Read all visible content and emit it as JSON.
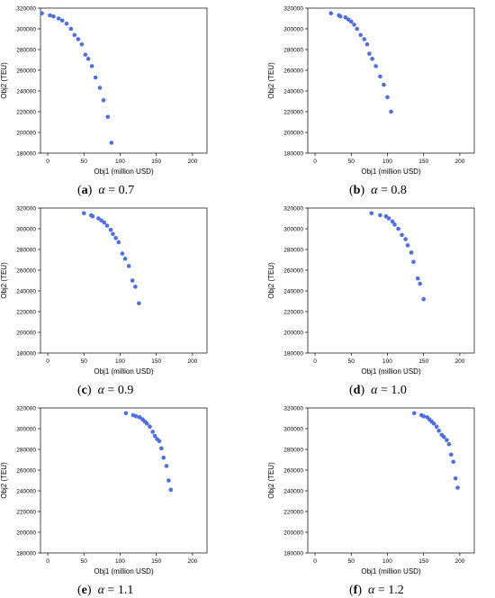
{
  "colors": {
    "marker": "#4f6ee6",
    "axis": "#000000"
  },
  "chart_data": [
    {
      "type": "scatter",
      "caption": {
        "letter": "a",
        "text": "α = 0.7"
      },
      "xlabel": "Obj1 (million USD)",
      "ylabel": "Obj2 (TEU)",
      "xlim": [
        -10,
        220
      ],
      "ylim": [
        180000,
        320000
      ],
      "xticks": [
        0,
        50,
        100,
        150,
        200
      ],
      "yticks": [
        180000,
        200000,
        220000,
        240000,
        260000,
        280000,
        300000,
        320000
      ],
      "points": [
        [
          -8,
          315000
        ],
        [
          3,
          313000
        ],
        [
          8,
          312000
        ],
        [
          15,
          310000
        ],
        [
          20,
          308000
        ],
        [
          26,
          305000
        ],
        [
          32,
          300000
        ],
        [
          37,
          294000
        ],
        [
          42,
          290000
        ],
        [
          47,
          285000
        ],
        [
          52,
          275000
        ],
        [
          56,
          271000
        ],
        [
          61,
          264000
        ],
        [
          66,
          253000
        ],
        [
          72,
          243000
        ],
        [
          77,
          231000
        ],
        [
          83,
          215000
        ],
        [
          88,
          190000
        ]
      ]
    },
    {
      "type": "scatter",
      "caption": {
        "letter": "b",
        "text": "α = 0.8"
      },
      "xlabel": "Obj1 (million USD)",
      "ylabel": "Obj2 (TEU)",
      "xlim": [
        -10,
        220
      ],
      "ylim": [
        180000,
        320000
      ],
      "xticks": [
        0,
        50,
        100,
        150,
        200
      ],
      "yticks": [
        180000,
        200000,
        220000,
        240000,
        260000,
        280000,
        300000,
        320000
      ],
      "points": [
        [
          22,
          315000
        ],
        [
          33,
          313000
        ],
        [
          35,
          312000
        ],
        [
          42,
          311000
        ],
        [
          46,
          309000
        ],
        [
          50,
          307000
        ],
        [
          54,
          304000
        ],
        [
          58,
          300000
        ],
        [
          63,
          294000
        ],
        [
          68,
          290000
        ],
        [
          72,
          285000
        ],
        [
          75,
          276000
        ],
        [
          79,
          271000
        ],
        [
          84,
          264000
        ],
        [
          90,
          254000
        ],
        [
          95,
          246000
        ],
        [
          100,
          234000
        ],
        [
          105,
          220000
        ]
      ]
    },
    {
      "type": "scatter",
      "caption": {
        "letter": "c",
        "text": "α = 0.9"
      },
      "xlabel": "Obj1 (million USD)",
      "ylabel": "Obj2 (TEU)",
      "xlim": [
        -10,
        220
      ],
      "ylim": [
        180000,
        320000
      ],
      "xticks": [
        0,
        50,
        100,
        150,
        200
      ],
      "yticks": [
        180000,
        200000,
        220000,
        240000,
        260000,
        280000,
        300000,
        320000
      ],
      "points": [
        [
          50,
          315000
        ],
        [
          60,
          313000
        ],
        [
          62,
          312000
        ],
        [
          70,
          310000
        ],
        [
          74,
          308000
        ],
        [
          78,
          306000
        ],
        [
          82,
          303000
        ],
        [
          87,
          299000
        ],
        [
          90,
          295000
        ],
        [
          94,
          291000
        ],
        [
          98,
          287000
        ],
        [
          103,
          276000
        ],
        [
          107,
          271000
        ],
        [
          112,
          264000
        ],
        [
          117,
          250000
        ],
        [
          121,
          244000
        ],
        [
          126,
          228000
        ]
      ]
    },
    {
      "type": "scatter",
      "caption": {
        "letter": "d",
        "text": "α = 1.0"
      },
      "xlabel": "Obj1 (million USD)",
      "ylabel": "Obj2 (TEU)",
      "xlim": [
        -10,
        220
      ],
      "ylim": [
        180000,
        320000
      ],
      "xticks": [
        0,
        50,
        100,
        150,
        200
      ],
      "yticks": [
        180000,
        200000,
        220000,
        240000,
        260000,
        280000,
        300000,
        320000
      ],
      "points": [
        [
          78,
          315000
        ],
        [
          90,
          313000
        ],
        [
          98,
          312000
        ],
        [
          102,
          310000
        ],
        [
          107,
          307000
        ],
        [
          110,
          304000
        ],
        [
          115,
          300000
        ],
        [
          120,
          294000
        ],
        [
          125,
          290000
        ],
        [
          128,
          284000
        ],
        [
          133,
          277000
        ],
        [
          136,
          268000
        ],
        [
          142,
          252000
        ],
        [
          145,
          247000
        ],
        [
          150,
          232000
        ]
      ]
    },
    {
      "type": "scatter",
      "caption": {
        "letter": "e",
        "text": "α = 1.1"
      },
      "xlabel": "Obj1 (million USD)",
      "ylabel": "Obj2 (TEU)",
      "xlim": [
        -10,
        220
      ],
      "ylim": [
        180000,
        320000
      ],
      "xticks": [
        0,
        50,
        100,
        150,
        200
      ],
      "yticks": [
        180000,
        200000,
        220000,
        240000,
        260000,
        280000,
        300000,
        320000
      ],
      "points": [
        [
          108,
          315000
        ],
        [
          118,
          313000
        ],
        [
          122,
          312000
        ],
        [
          127,
          311000
        ],
        [
          131,
          309000
        ],
        [
          134,
          307000
        ],
        [
          137,
          305000
        ],
        [
          141,
          302000
        ],
        [
          145,
          297000
        ],
        [
          148,
          293000
        ],
        [
          151,
          290000
        ],
        [
          154,
          288000
        ],
        [
          157,
          281000
        ],
        [
          160,
          272000
        ],
        [
          164,
          264000
        ],
        [
          167,
          250000
        ],
        [
          170,
          241000
        ]
      ]
    },
    {
      "type": "scatter",
      "caption": {
        "letter": "f",
        "text": "α = 1.2"
      },
      "xlabel": "Obj1 (million USD)",
      "ylabel": "Obj2 (TEU)",
      "xlim": [
        -10,
        220
      ],
      "ylim": [
        180000,
        320000
      ],
      "xticks": [
        0,
        50,
        100,
        150,
        200
      ],
      "yticks": [
        180000,
        200000,
        220000,
        240000,
        260000,
        280000,
        300000,
        320000
      ],
      "points": [
        [
          137,
          315000
        ],
        [
          147,
          313000
        ],
        [
          150,
          312000
        ],
        [
          155,
          311000
        ],
        [
          158,
          309000
        ],
        [
          161,
          307000
        ],
        [
          164,
          305000
        ],
        [
          168,
          302000
        ],
        [
          171,
          298000
        ],
        [
          175,
          294000
        ],
        [
          178,
          292000
        ],
        [
          182,
          289000
        ],
        [
          185,
          285000
        ],
        [
          188,
          275000
        ],
        [
          191,
          268000
        ],
        [
          194,
          252000
        ],
        [
          197,
          243000
        ]
      ]
    }
  ]
}
